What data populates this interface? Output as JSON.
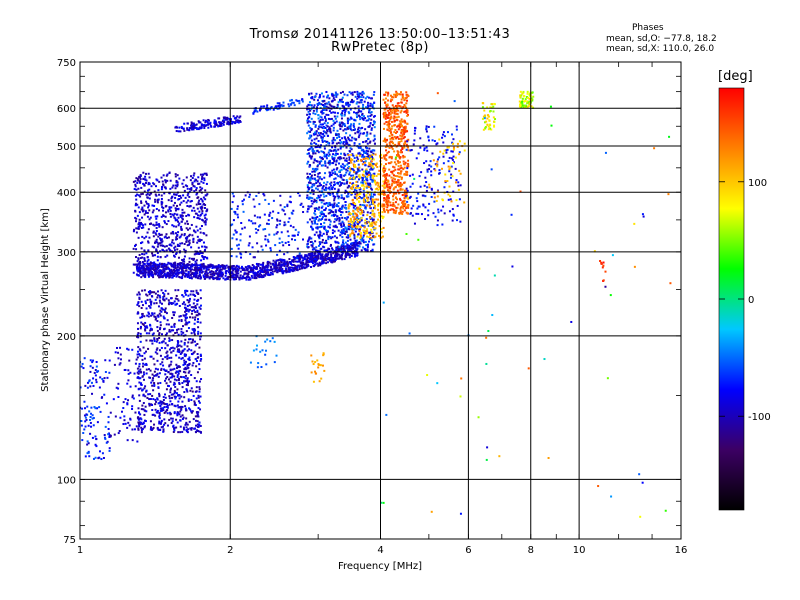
{
  "chart_data": {
    "type": "scatter",
    "title": "Tromsø 20141126 13:50:00–13:51:43",
    "subtitle": "RwPretec (8p)",
    "xlabel": "Frequency [MHz]",
    "ylabel": "Stationary phase Virtual Height [km]",
    "x_scale": "log",
    "y_scale": "log",
    "xlim": [
      1,
      16
    ],
    "ylim": [
      75,
      750
    ],
    "x_ticks": [
      1,
      2,
      4,
      6,
      8,
      10,
      16
    ],
    "x_tick_labels": [
      "1",
      "2",
      "4",
      "6",
      "8",
      "10",
      "16"
    ],
    "y_ticks": [
      75,
      100,
      200,
      300,
      400,
      500,
      600,
      750
    ],
    "y_tick_labels": [
      "75",
      "100",
      "200",
      "300",
      "400",
      "500",
      "600",
      "750"
    ],
    "grid": true,
    "colorbar": {
      "label": "[deg]",
      "range": [
        -180,
        180
      ],
      "ticks": [
        100,
        0,
        -100
      ],
      "tick_labels": [
        "100",
        "0",
        "-100"
      ],
      "stops": [
        "#000000",
        "#3c0064",
        "#0000ff",
        "#00c8ff",
        "#00ff00",
        "#ffff00",
        "#ff8000",
        "#ff0000"
      ]
    },
    "stats": {
      "heading": "Phases",
      "o_line": "mean, sd,O: −77.8, 18.2",
      "x_line": "mean, sd,X: 110.0, 26.0"
    },
    "clusters": [
      {
        "x": [
          1.0,
          1.15
        ],
        "y": [
          110,
          180
        ],
        "n": 120,
        "phase": [
          -100,
          -50
        ]
      },
      {
        "x": [
          1.15,
          1.35
        ],
        "y": [
          120,
          190
        ],
        "n": 90,
        "phase": [
          -110,
          -70
        ]
      },
      {
        "x": [
          1.3,
          1.75
        ],
        "y": [
          125,
          250
        ],
        "n": 900,
        "phase": [
          -120,
          -70
        ]
      },
      {
        "x": [
          1.28,
          1.8
        ],
        "y": [
          270,
          440
        ],
        "n": 700,
        "phase": [
          -115,
          -75
        ]
      },
      {
        "x": [
          1.3,
          3.6
        ],
        "trace": "f2_low",
        "y_spread": 0.035,
        "n": 1300,
        "phase": [
          -115,
          -75
        ]
      },
      {
        "x": [
          1.55,
          2.1
        ],
        "trace": "band_560",
        "y_spread": 0.02,
        "n": 160,
        "phase": [
          -110,
          -70
        ]
      },
      {
        "x": [
          2.2,
          2.8
        ],
        "trace": "band_620",
        "y_spread": 0.015,
        "n": 60,
        "phase": [
          -90,
          -50
        ]
      },
      {
        "x": [
          2.0,
          2.8
        ],
        "y": [
          290,
          400
        ],
        "n": 160,
        "phase": [
          -100,
          -50
        ]
      },
      {
        "x": [
          2.85,
          3.9
        ],
        "y": [
          300,
          650
        ],
        "n": 1500,
        "phase": [
          -110,
          -40
        ]
      },
      {
        "x": [
          2.2,
          2.5
        ],
        "y": [
          170,
          200
        ],
        "n": 20,
        "phase": [
          -60,
          -30
        ]
      },
      {
        "x": [
          2.9,
          3.1
        ],
        "y": [
          160,
          185
        ],
        "n": 22,
        "phase": [
          100,
          130
        ]
      },
      {
        "x": [
          3.45,
          4.1
        ],
        "y": [
          320,
          480
        ],
        "n": 300,
        "phase": [
          80,
          140
        ]
      },
      {
        "x": [
          4.05,
          4.55
        ],
        "y": [
          360,
          650
        ],
        "n": 550,
        "phase": [
          120,
          170
        ]
      },
      {
        "x": [
          4.5,
          5.8
        ],
        "y": [
          340,
          550
        ],
        "n": 160,
        "phase": [
          -100,
          -60
        ]
      },
      {
        "x": [
          5.0,
          5.9
        ],
        "y": [
          380,
          520
        ],
        "n": 50,
        "phase": [
          80,
          130
        ]
      },
      {
        "x": [
          6.4,
          6.8
        ],
        "y": [
          540,
          620
        ],
        "n": 45,
        "phase": [
          40,
          110
        ]
      },
      {
        "x": [
          7.6,
          8.1
        ],
        "y": [
          600,
          650
        ],
        "n": 70,
        "phase": [
          30,
          100
        ]
      },
      {
        "x": [
          11.0,
          11.3
        ],
        "y": [
          255,
          290
        ],
        "n": 10,
        "phase": [
          150,
          180
        ]
      },
      {
        "x": [
          4.0,
          16.0
        ],
        "y": [
          80,
          650
        ],
        "n": 60,
        "phase": [
          -120,
          150
        ]
      }
    ]
  }
}
